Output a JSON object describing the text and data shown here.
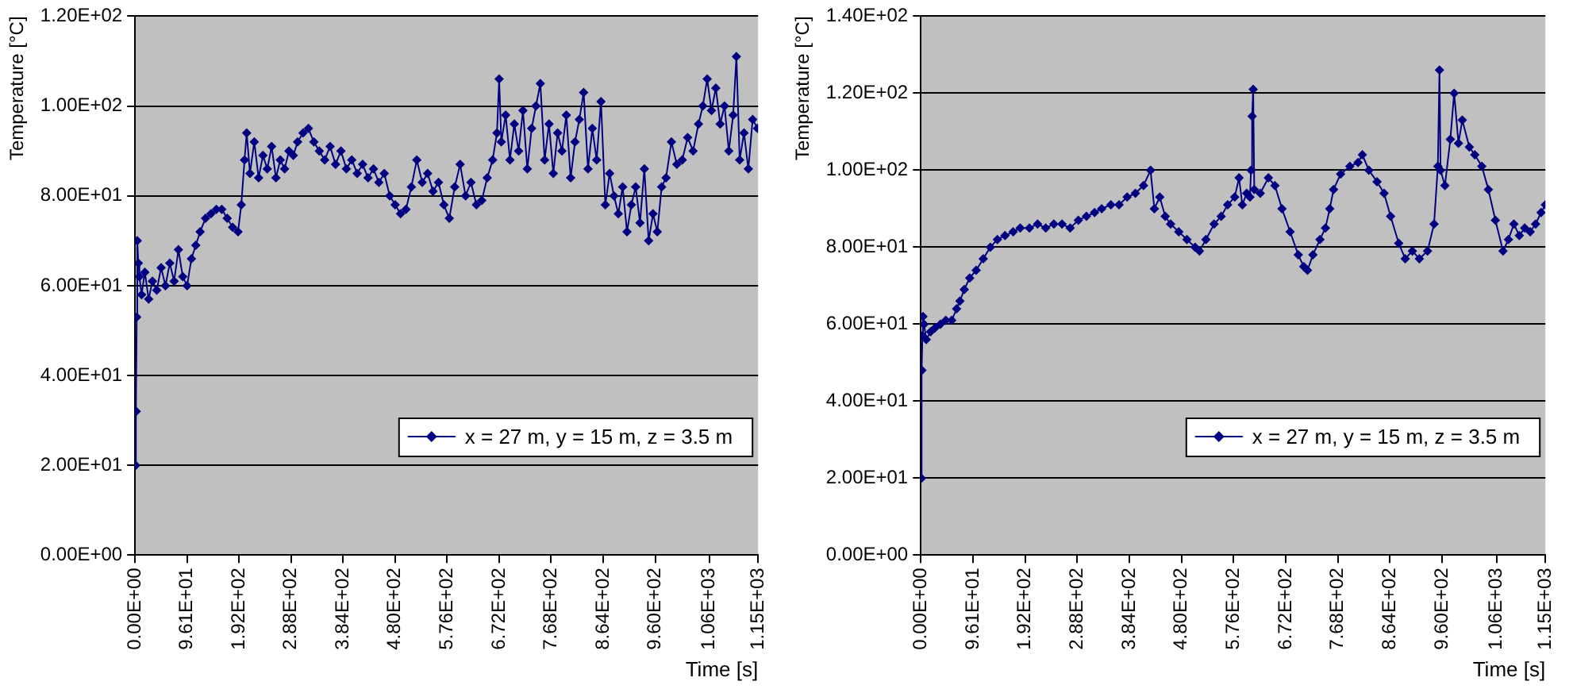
{
  "chart_data": [
    {
      "type": "line",
      "xlabel": "Time [s]",
      "ylabel": "Temperature [°C]",
      "legend": "bottom right",
      "grid": "y",
      "marker": "diamond",
      "line_style": "solid",
      "xlim": [
        0,
        1150
      ],
      "xticks": [
        {
          "value": 0,
          "label": "0.00E+00"
        },
        {
          "value": 96.1,
          "label": "9.61E+01"
        },
        {
          "value": 192,
          "label": "1.92E+02"
        },
        {
          "value": 288,
          "label": "2.88E+02"
        },
        {
          "value": 384,
          "label": "3.84E+02"
        },
        {
          "value": 480,
          "label": "4.80E+02"
        },
        {
          "value": 576,
          "label": "5.76E+02"
        },
        {
          "value": 672,
          "label": "6.72E+02"
        },
        {
          "value": 768,
          "label": "7.68E+02"
        },
        {
          "value": 864,
          "label": "8.64E+02"
        },
        {
          "value": 960,
          "label": "9.60E+02"
        },
        {
          "value": 1060,
          "label": "1.06E+03"
        },
        {
          "value": 1150,
          "label": "1.15E+03"
        }
      ],
      "ylim": [
        0,
        120
      ],
      "yticks": [
        {
          "value": 0,
          "label": "0.00E+00"
        },
        {
          "value": 20,
          "label": "2.00E+01"
        },
        {
          "value": 40,
          "label": "4.00E+01"
        },
        {
          "value": 60,
          "label": "6.00E+01"
        },
        {
          "value": 80,
          "label": "8.00E+01"
        },
        {
          "value": 100,
          "label": "1.00E+02"
        },
        {
          "value": 120,
          "label": "1.20E+02"
        }
      ],
      "x": [
        0,
        1,
        2,
        3,
        4,
        6,
        8,
        12,
        18,
        25,
        32,
        40,
        48,
        56,
        64,
        72,
        80,
        88,
        96,
        104,
        112,
        120,
        130,
        140,
        150,
        160,
        170,
        180,
        190,
        196,
        202,
        206,
        212,
        220,
        228,
        236,
        244,
        252,
        260,
        268,
        276,
        284,
        292,
        300,
        310,
        320,
        330,
        340,
        350,
        360,
        370,
        380,
        390,
        400,
        410,
        420,
        430,
        440,
        450,
        460,
        470,
        480,
        490,
        500,
        510,
        520,
        530,
        540,
        550,
        560,
        570,
        580,
        590,
        600,
        610,
        620,
        630,
        640,
        650,
        660,
        668,
        672,
        676,
        684,
        692,
        700,
        708,
        716,
        724,
        732,
        740,
        748,
        756,
        764,
        772,
        780,
        788,
        796,
        804,
        812,
        820,
        828,
        836,
        844,
        852,
        860,
        868,
        876,
        884,
        892,
        900,
        908,
        916,
        924,
        932,
        940,
        948,
        956,
        964,
        972,
        980,
        990,
        1000,
        1010,
        1020,
        1030,
        1040,
        1048,
        1056,
        1064,
        1072,
        1080,
        1088,
        1096,
        1104,
        1110,
        1116,
        1124,
        1132,
        1140,
        1149
      ],
      "series": [
        {
          "name": "x = 27 m, y = 15 m, z = 3.5 m",
          "color": "#000080",
          "values": [
            20,
            20,
            32,
            53,
            70,
            65,
            62,
            58,
            63,
            57,
            61,
            59,
            64,
            60,
            65,
            61,
            68,
            62,
            60,
            66,
            69,
            72,
            75,
            76,
            77,
            77,
            75,
            73,
            72,
            78,
            88,
            94,
            85,
            92,
            84,
            89,
            86,
            91,
            84,
            88,
            86,
            90,
            89,
            92,
            94,
            95,
            92,
            90,
            88,
            91,
            87,
            90,
            86,
            88,
            85,
            87,
            84,
            86,
            83,
            85,
            80,
            78,
            76,
            77,
            82,
            88,
            83,
            85,
            81,
            83,
            78,
            75,
            82,
            87,
            80,
            83,
            78,
            79,
            84,
            88,
            94,
            106,
            92,
            98,
            88,
            96,
            90,
            99,
            86,
            95,
            100,
            105,
            88,
            96,
            85,
            94,
            90,
            98,
            84,
            92,
            97,
            103,
            86,
            95,
            88,
            101,
            78,
            85,
            80,
            76,
            82,
            72,
            78,
            82,
            74,
            86,
            70,
            76,
            72,
            82,
            84,
            92,
            87,
            88,
            93,
            90,
            96,
            100,
            106,
            99,
            104,
            96,
            100,
            90,
            98,
            111,
            88,
            94,
            86,
            97,
            95
          ]
        }
      ]
    },
    {
      "type": "line",
      "xlabel": "Time [s]",
      "ylabel": "Temperature [°C]",
      "legend": "bottom right",
      "grid": "y",
      "marker": "diamond",
      "line_style": "solid",
      "xlim": [
        0,
        1150
      ],
      "xticks": [
        {
          "value": 0,
          "label": "0.00E+00"
        },
        {
          "value": 96.1,
          "label": "9.61E+01"
        },
        {
          "value": 192,
          "label": "1.92E+02"
        },
        {
          "value": 288,
          "label": "2.88E+02"
        },
        {
          "value": 384,
          "label": "3.84E+02"
        },
        {
          "value": 480,
          "label": "4.80E+02"
        },
        {
          "value": 576,
          "label": "5.76E+02"
        },
        {
          "value": 672,
          "label": "6.72E+02"
        },
        {
          "value": 768,
          "label": "7.68E+02"
        },
        {
          "value": 864,
          "label": "8.64E+02"
        },
        {
          "value": 960,
          "label": "9.60E+02"
        },
        {
          "value": 1060,
          "label": "1.06E+03"
        },
        {
          "value": 1150,
          "label": "1.15E+03"
        }
      ],
      "ylim": [
        0,
        140
      ],
      "yticks": [
        {
          "value": 0,
          "label": "0.00E+00"
        },
        {
          "value": 20,
          "label": "2.00E+01"
        },
        {
          "value": 40,
          "label": "4.00E+01"
        },
        {
          "value": 60,
          "label": "6.00E+01"
        },
        {
          "value": 80,
          "label": "8.00E+01"
        },
        {
          "value": 100,
          "label": "1.00E+02"
        },
        {
          "value": 120,
          "label": "1.20E+02"
        },
        {
          "value": 140,
          "label": "1.40E+02"
        }
      ],
      "x": [
        0,
        1,
        2,
        3,
        4,
        6,
        10,
        18,
        26,
        36,
        46,
        57,
        66,
        72,
        80,
        90,
        102,
        115,
        128,
        141,
        155,
        170,
        183,
        200,
        215,
        230,
        245,
        260,
        275,
        290,
        305,
        320,
        333,
        350,
        365,
        380,
        395,
        410,
        423,
        430,
        440,
        450,
        460,
        475,
        490,
        505,
        513,
        525,
        540,
        553,
        565,
        578,
        586,
        592,
        600,
        606,
        608,
        610,
        612,
        614,
        625,
        640,
        652,
        665,
        680,
        695,
        705,
        712,
        722,
        735,
        745,
        753,
        760,
        773,
        790,
        805,
        813,
        825,
        840,
        853,
        865,
        880,
        892,
        905,
        918,
        933,
        945,
        952,
        955,
        957,
        965,
        975,
        982,
        990,
        997,
        1010,
        1020,
        1033,
        1045,
        1058,
        1072,
        1082,
        1092,
        1102,
        1112,
        1122,
        1132,
        1142,
        1150
      ],
      "series": [
        {
          "name": "x = 27 m, y = 15 m, z = 3.5 m",
          "color": "#000080",
          "values": [
            20,
            20,
            48,
            57,
            62,
            60,
            56,
            58,
            59,
            60,
            61,
            61,
            64,
            66,
            69,
            72,
            74,
            77,
            80,
            82,
            83,
            84,
            85,
            85,
            86,
            85,
            86,
            86,
            85,
            87,
            88,
            89,
            90,
            91,
            91,
            93,
            94,
            96,
            100,
            90,
            93,
            88,
            86,
            84,
            82,
            80,
            79,
            82,
            86,
            88,
            91,
            93,
            98,
            91,
            94,
            93,
            100,
            114,
            121,
            95,
            94,
            98,
            96,
            90,
            84,
            78,
            75,
            74,
            78,
            82,
            85,
            90,
            95,
            99,
            101,
            102,
            104,
            100,
            97,
            94,
            88,
            81,
            77,
            79,
            77,
            79,
            86,
            101,
            126,
            100,
            96,
            108,
            120,
            107,
            113,
            106,
            104,
            101,
            95,
            87,
            79,
            82,
            86,
            83,
            85,
            84,
            86,
            89,
            91
          ]
        }
      ]
    }
  ]
}
